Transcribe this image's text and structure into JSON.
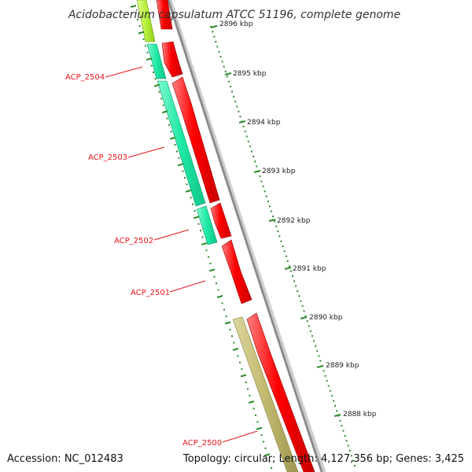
{
  "title": "Acidobacterium capsulatum ATCC 51196, complete genome",
  "footer": {
    "accession": "Accession: NC_012483",
    "summary": "Topology: circular; Length: 4,127,356 bp; Genes: 3,425"
  },
  "kbp_ticks": [
    "2896 kbp",
    "2895 kbp",
    "2894 kbp",
    "2893 kbp",
    "2892 kbp",
    "2891 kbp",
    "2890 kbp",
    "2889 kbp",
    "2888 kbp"
  ],
  "gene_labels": [
    "ACP_2504",
    "ACP_2503",
    "ACP_2502",
    "ACP_2501",
    "ACP_2500"
  ],
  "colors": {
    "forward_cds": "#ff0000",
    "reverse_cds_teal": "#1de9a4",
    "reverse_cds_olive": "#c1b96e",
    "reverse_cds_lime": "#b7f03a",
    "backbone": "#8c8c8c",
    "ruler": "#2e8b2e",
    "label": "#e8141b"
  }
}
